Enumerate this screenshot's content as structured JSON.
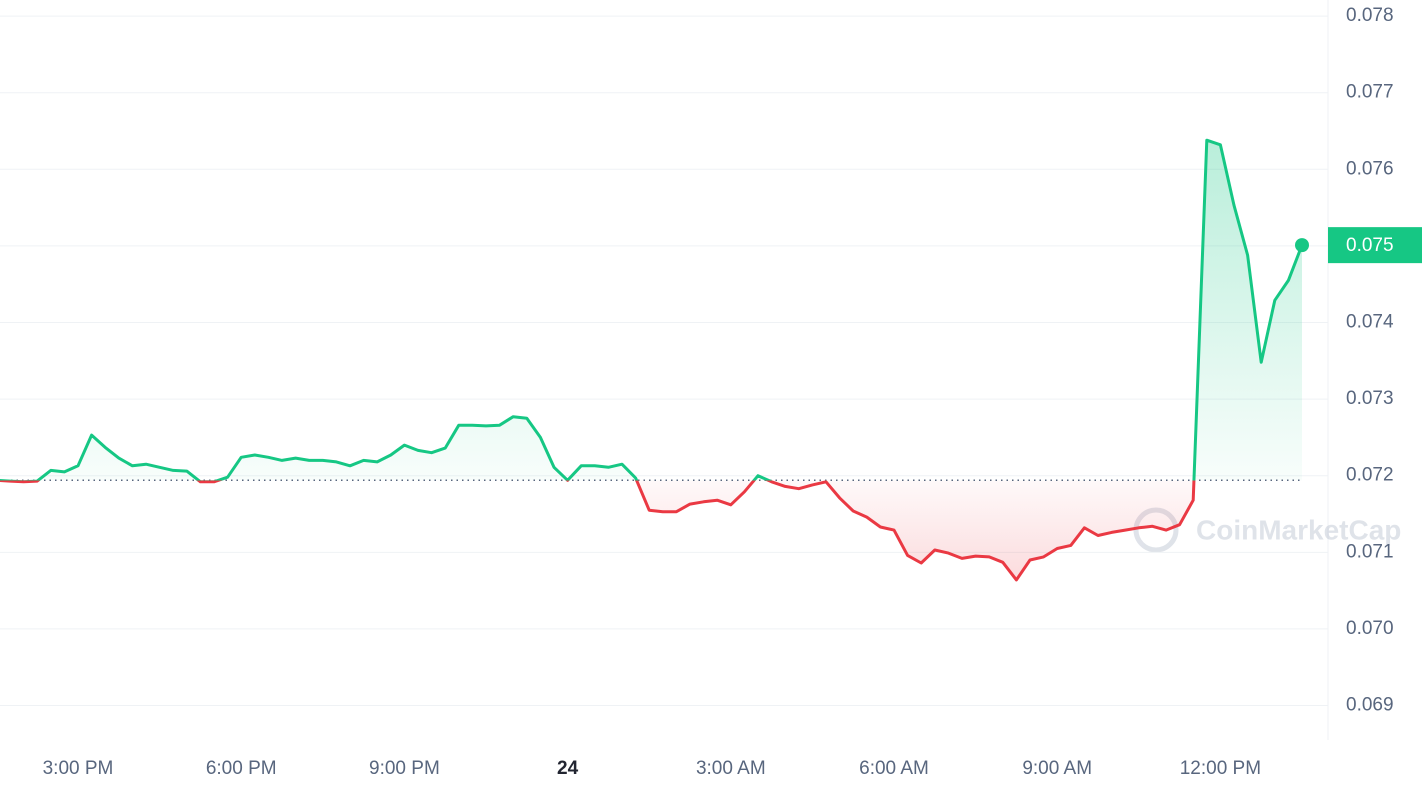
{
  "chart_data": {
    "type": "line",
    "watermark": "CoinMarketCap",
    "categories": [
      null,
      null,
      null,
      null,
      null,
      null,
      "3:00 PM",
      null,
      null,
      null,
      null,
      null,
      null,
      null,
      null,
      null,
      null,
      null,
      "6:00 PM",
      null,
      null,
      null,
      null,
      null,
      null,
      null,
      null,
      null,
      null,
      null,
      "9:00 PM",
      null,
      null,
      null,
      null,
      null,
      null,
      null,
      null,
      null,
      null,
      null,
      "24",
      null,
      null,
      null,
      null,
      null,
      null,
      null,
      null,
      null,
      null,
      null,
      "3:00 AM",
      null,
      null,
      null,
      null,
      null,
      null,
      null,
      null,
      null,
      null,
      null,
      "6:00 AM",
      null,
      null,
      null,
      null,
      null,
      null,
      null,
      null,
      null,
      null,
      null,
      "9:00 AM",
      null,
      null,
      null,
      null,
      null,
      null,
      null,
      null,
      null,
      null,
      null,
      "12:00 PM",
      null,
      null,
      null,
      null,
      null,
      null
    ],
    "values": [
      0.07194,
      0.07193,
      0.07192,
      0.07193,
      0.07207,
      0.07205,
      0.07213,
      0.07253,
      0.07237,
      0.07223,
      0.07213,
      0.07215,
      0.07211,
      0.07207,
      0.07206,
      0.07192,
      0.07192,
      0.07198,
      0.07224,
      0.07227,
      0.07224,
      0.0722,
      0.07223,
      0.0722,
      0.0722,
      0.07218,
      0.07213,
      0.0722,
      0.07218,
      0.07227,
      0.0724,
      0.07233,
      0.0723,
      0.07236,
      0.07266,
      0.07266,
      0.07265,
      0.07266,
      0.07277,
      0.07275,
      0.0725,
      0.07211,
      0.07194,
      0.07213,
      0.07213,
      0.07211,
      0.07215,
      0.07197,
      0.07155,
      0.07153,
      0.07153,
      0.07163,
      0.07166,
      0.07168,
      0.07162,
      0.07179,
      0.072,
      0.07192,
      0.07186,
      0.07183,
      0.07188,
      0.07192,
      0.07171,
      0.07154,
      0.07146,
      0.07133,
      0.07129,
      0.07096,
      0.07086,
      0.07103,
      0.07099,
      0.07092,
      0.07095,
      0.07094,
      0.07087,
      0.07064,
      0.0709,
      0.07094,
      0.07105,
      0.07109,
      0.07132,
      0.07122,
      0.07126,
      0.07129,
      0.07132,
      0.07134,
      0.07129,
      0.07136,
      0.07168,
      0.07638,
      0.07632,
      0.07553,
      0.07488,
      0.07348,
      0.07429,
      0.07455,
      0.07501
    ],
    "baseline": 0.07194,
    "up_color": "#16c784",
    "down_color": "#ea3943",
    "price_tag": "0.075",
    "ylim": [
      0.06855,
      0.07821
    ],
    "yticks": [
      0.069,
      {
        "value": 0.07,
        "label": "0.070"
      },
      0.071,
      0.072,
      0.073,
      0.074,
      0.075,
      0.076,
      0.077,
      0.078
    ],
    "grid": true
  }
}
